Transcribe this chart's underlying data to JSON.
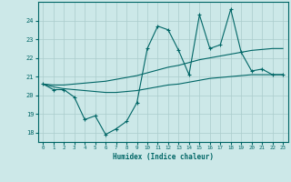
{
  "background_color": "#cce8e8",
  "grid_color": "#aacccc",
  "line_color": "#006666",
  "xlabel": "Humidex (Indice chaleur)",
  "xlim": [
    -0.5,
    23.5
  ],
  "ylim": [
    17.5,
    25.0
  ],
  "yticks": [
    18,
    19,
    20,
    21,
    22,
    23,
    24
  ],
  "xticks": [
    0,
    1,
    2,
    3,
    4,
    5,
    6,
    7,
    8,
    9,
    10,
    11,
    12,
    13,
    14,
    15,
    16,
    17,
    18,
    19,
    20,
    21,
    22,
    23
  ],
  "main_x": [
    0,
    1,
    2,
    3,
    4,
    5,
    6,
    7,
    8,
    9,
    10,
    11,
    12,
    13,
    14,
    15,
    16,
    17,
    18,
    19,
    20,
    21,
    22,
    23
  ],
  "main_y": [
    20.6,
    20.3,
    20.3,
    19.9,
    18.7,
    18.9,
    17.9,
    18.2,
    18.6,
    19.6,
    22.5,
    23.7,
    23.5,
    22.4,
    21.1,
    24.3,
    22.5,
    22.7,
    24.6,
    22.3,
    21.3,
    21.4,
    21.1,
    21.1
  ],
  "upper_x": [
    0,
    1,
    2,
    3,
    4,
    5,
    6,
    7,
    8,
    9,
    10,
    11,
    12,
    13,
    14,
    15,
    16,
    17,
    18,
    19,
    20,
    21,
    22,
    23
  ],
  "upper_y": [
    20.6,
    20.55,
    20.55,
    20.6,
    20.65,
    20.7,
    20.75,
    20.85,
    20.95,
    21.05,
    21.2,
    21.35,
    21.5,
    21.6,
    21.75,
    21.9,
    22.0,
    22.1,
    22.2,
    22.3,
    22.4,
    22.45,
    22.5,
    22.5
  ],
  "lower_x": [
    0,
    1,
    2,
    3,
    4,
    5,
    6,
    7,
    8,
    9,
    10,
    11,
    12,
    13,
    14,
    15,
    16,
    17,
    18,
    19,
    20,
    21,
    22,
    23
  ],
  "lower_y": [
    20.6,
    20.45,
    20.35,
    20.3,
    20.25,
    20.2,
    20.15,
    20.15,
    20.2,
    20.25,
    20.35,
    20.45,
    20.55,
    20.6,
    20.7,
    20.8,
    20.9,
    20.95,
    21.0,
    21.05,
    21.1,
    21.1,
    21.1,
    21.1
  ]
}
